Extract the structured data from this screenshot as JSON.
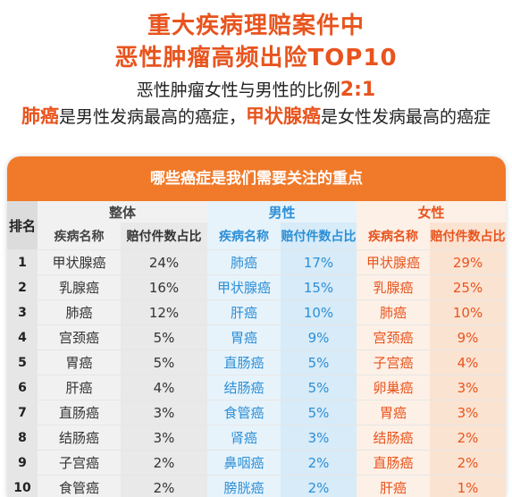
{
  "header": {
    "title_line1": "重大疾病理赔案件中",
    "title_line2": "恶性肿瘤高频出险TOP10",
    "ratio_text": "恶性肿瘤女性与男性的比例",
    "ratio_value": "2:1",
    "male_top_cancer": "肺癌",
    "male_text": "是男性发病最高的癌症，",
    "female_top_cancer": "甲状腺癌",
    "female_text": "是女性发病最高的癌症"
  },
  "table_title": "哪些癌症是我们需要关注的重点",
  "colors": {
    "accent": "#e8541e",
    "banner": "#f07a2a",
    "male": "#2c8fd6"
  },
  "chart_data": {
    "type": "table",
    "rank_header": "排名",
    "groups": [
      "整体",
      "男性",
      "女性"
    ],
    "sub_headers": [
      "疾病名称",
      "赔付件数占比"
    ],
    "rows": [
      {
        "rank": "1",
        "overall_name": "甲状腺癌",
        "overall_pct": "24%",
        "male_name": "肺癌",
        "male_pct": "17%",
        "female_name": "甲状腺癌",
        "female_pct": "29%"
      },
      {
        "rank": "2",
        "overall_name": "乳腺癌",
        "overall_pct": "16%",
        "male_name": "甲状腺癌",
        "male_pct": "15%",
        "female_name": "乳腺癌",
        "female_pct": "25%"
      },
      {
        "rank": "3",
        "overall_name": "肺癌",
        "overall_pct": "12%",
        "male_name": "肝癌",
        "male_pct": "10%",
        "female_name": "肺癌",
        "female_pct": "10%"
      },
      {
        "rank": "4",
        "overall_name": "宫颈癌",
        "overall_pct": "5%",
        "male_name": "胃癌",
        "male_pct": "9%",
        "female_name": "宫颈癌",
        "female_pct": "9%"
      },
      {
        "rank": "5",
        "overall_name": "胃癌",
        "overall_pct": "5%",
        "male_name": "直肠癌",
        "male_pct": "5%",
        "female_name": "子宫癌",
        "female_pct": "4%"
      },
      {
        "rank": "6",
        "overall_name": "肝癌",
        "overall_pct": "4%",
        "male_name": "结肠癌",
        "male_pct": "5%",
        "female_name": "卵巢癌",
        "female_pct": "3%"
      },
      {
        "rank": "7",
        "overall_name": "直肠癌",
        "overall_pct": "3%",
        "male_name": "食管癌",
        "male_pct": "5%",
        "female_name": "胃癌",
        "female_pct": "3%"
      },
      {
        "rank": "8",
        "overall_name": "结肠癌",
        "overall_pct": "3%",
        "male_name": "肾癌",
        "male_pct": "3%",
        "female_name": "结肠癌",
        "female_pct": "2%"
      },
      {
        "rank": "9",
        "overall_name": "子宫癌",
        "overall_pct": "2%",
        "male_name": "鼻咽癌",
        "male_pct": "2%",
        "female_name": "直肠癌",
        "female_pct": "2%"
      },
      {
        "rank": "10",
        "overall_name": "食管癌",
        "overall_pct": "2%",
        "male_name": "膀胱癌",
        "male_pct": "2%",
        "female_name": "肝癌",
        "female_pct": "1%"
      }
    ]
  }
}
